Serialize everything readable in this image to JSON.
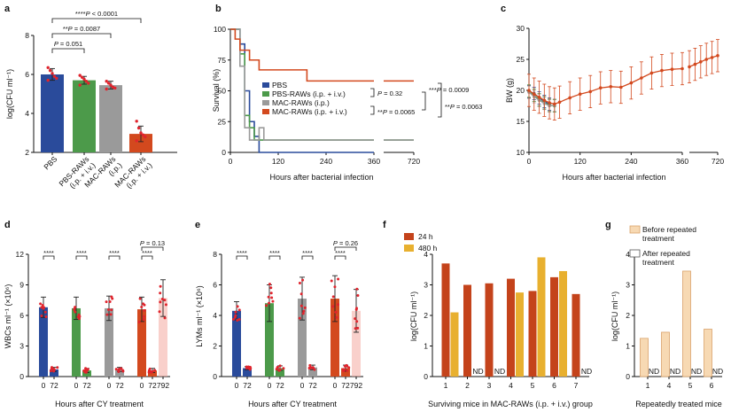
{
  "colors": {
    "pbs": "#2a4b9b",
    "pbs_raws": "#4c9a4a",
    "mac_ivp": "#9a9a9a",
    "mac_ivp_iv": "#d3491e",
    "mac_ivp_iv_light": "#f4a9a0",
    "bar_24h": "#c4431b",
    "bar_480h": "#e8b02f",
    "before_fill": "#f7d9b3",
    "before_edge": "#d9a26a",
    "dots": "#e0242d",
    "axis": "#111111"
  },
  "panel_labels": {
    "a": "a",
    "b": "b",
    "c": "c",
    "d": "d",
    "e": "e",
    "f": "f",
    "g": "g"
  },
  "chart_data": [
    {
      "panel": "a",
      "type": "bar",
      "ylabel": "log(CFU ml⁻¹)",
      "ylim": [
        2,
        8
      ],
      "yticks": [
        "2",
        "4",
        "6",
        "8"
      ],
      "categories": [
        "PBS",
        "PBS-RAWs (i.p. + i.v.)",
        "MAC-RAWs (i.p.)",
        "MAC-RAWs (i.p. + i.v.)"
      ],
      "category_lines": [
        [
          "PBS"
        ],
        [
          "PBS-RAWs",
          "(i.p. + i.v.)"
        ],
        [
          "MAC-RAWs",
          "(i.p.)"
        ],
        [
          "MAC-RAWs",
          "(i.p. + i.v.)"
        ]
      ],
      "values": [
        6.0,
        5.7,
        5.45,
        2.95
      ],
      "errors": [
        0.3,
        0.2,
        0.2,
        0.4
      ],
      "points": [
        [
          6.35,
          6.2,
          6.05,
          5.9,
          5.8,
          5.7
        ],
        [
          5.95,
          5.85,
          5.75,
          5.65,
          5.55,
          5.45
        ],
        [
          5.65,
          5.55,
          5.45,
          5.35,
          5.3,
          5.25
        ],
        [
          3.6,
          3.25,
          3.0,
          2.9,
          2.8,
          2.6
        ]
      ],
      "significance": [
        {
          "prefix": "",
          "stars": "",
          "p_label": "P",
          "p_value": " = 0.051",
          "from": 0,
          "to": 1
        },
        {
          "prefix": "",
          "stars": "**",
          "p_label": "P",
          "p_value": " = 0.0087",
          "from": 0,
          "to": 2
        },
        {
          "prefix": "",
          "stars": "****",
          "p_label": "P",
          "p_value": " < 0.0001",
          "from": 0,
          "to": 3
        }
      ]
    },
    {
      "panel": "b",
      "type": "line",
      "xlabel": "Hours after bacterial infection",
      "ylabel": "Survival (%)",
      "xticks": [
        "0",
        "120",
        "240",
        "360",
        "720"
      ],
      "xtick_values": [
        0,
        120,
        240,
        360,
        720
      ],
      "yticks": [
        "0",
        "25",
        "50",
        "75",
        "100"
      ],
      "ylim": [
        0,
        100
      ],
      "series": [
        {
          "name": "PBS",
          "color_key": "pbs",
          "steps": [
            [
              0,
              100
            ],
            [
              24,
              88
            ],
            [
              36,
              50
            ],
            [
              48,
              25
            ],
            [
              60,
              13
            ],
            [
              72,
              0
            ],
            [
              360,
              0
            ]
          ]
        },
        {
          "name": "PBS-RAWs (i.p. + i.v.)",
          "color_key": "pbs_raws",
          "steps": [
            [
              0,
              100
            ],
            [
              24,
              80
            ],
            [
              36,
              30
            ],
            [
              48,
              20
            ],
            [
              60,
              10
            ],
            [
              720,
              10
            ]
          ]
        },
        {
          "name": "MAC-RAWs (i.p.)",
          "color_key": "mac_ivp",
          "steps": [
            [
              0,
              100
            ],
            [
              24,
              70
            ],
            [
              36,
              20
            ],
            [
              48,
              10
            ],
            [
              60,
              10
            ],
            [
              72,
              20
            ],
            [
              84,
              10
            ],
            [
              720,
              10
            ]
          ]
        },
        {
          "name": "MAC-RAWs (i.p. + i.v.)",
          "color_key": "mac_ivp_iv",
          "steps": [
            [
              0,
              100
            ],
            [
              12,
              92
            ],
            [
              24,
              83
            ],
            [
              48,
              75
            ],
            [
              72,
              67
            ],
            [
              192,
              58
            ],
            [
              720,
              58
            ]
          ]
        }
      ],
      "stats": [
        {
          "stars": "",
          "p_label": "P",
          "p_value": " = 0.32"
        },
        {
          "stars": "**",
          "p_label": "P",
          "p_value": " = 0.0065"
        },
        {
          "stars": "***",
          "p_label": "P",
          "p_value": " = 0.0009"
        },
        {
          "stars": "**",
          "p_label": "P",
          "p_value": " = 0.0063"
        }
      ]
    },
    {
      "panel": "c",
      "type": "line",
      "xlabel": "Hours after bacterial infection",
      "ylabel": "BW (g)",
      "xticks": [
        "0",
        "120",
        "240",
        "360",
        "720"
      ],
      "yticks": [
        "10",
        "15",
        "20",
        "25",
        "30"
      ],
      "ylim": [
        10,
        30
      ],
      "series": [
        {
          "name": "PBS",
          "color_key": "pbs",
          "x": [
            0,
            12,
            24,
            36,
            48
          ],
          "y": [
            19.8,
            19.5,
            18.8,
            18.2,
            17.8
          ]
        },
        {
          "name": "PBS-RAWs (i.p. + i.v.)",
          "color_key": "pbs_raws",
          "x": [
            0,
            12,
            24,
            36,
            48,
            60
          ],
          "y": [
            19.9,
            19.2,
            18.5,
            18.0,
            17.6,
            17.5
          ]
        },
        {
          "name": "MAC-RAWs (i.p.)",
          "color_key": "mac_ivp",
          "x": [
            0,
            12,
            24,
            36,
            48,
            60
          ],
          "y": [
            19.7,
            19.0,
            18.4,
            17.9,
            17.5,
            17.6
          ]
        },
        {
          "name": "MAC-RAWs (i.p. + i.v.)",
          "color_key": "mac_ivp_iv",
          "x": [
            0,
            12,
            24,
            36,
            48,
            60,
            72,
            96,
            120,
            144,
            168,
            192,
            216,
            240,
            264,
            288,
            312,
            336,
            360
          ],
          "y": [
            20.0,
            19.4,
            18.9,
            18.4,
            18.0,
            17.8,
            18.1,
            18.8,
            19.4,
            19.8,
            20.4,
            20.6,
            20.5,
            21.2,
            22.0,
            22.8,
            23.2,
            23.4,
            23.5
          ]
        },
        {
          "name": "MAC-RAWs (i.p. + i.v.) late",
          "color_key": "mac_ivp_iv",
          "x": [
            600,
            624,
            648,
            672,
            696,
            720
          ],
          "y": [
            23.8,
            24.2,
            24.6,
            25.0,
            25.3,
            25.6
          ]
        }
      ]
    },
    {
      "panel": "d",
      "type": "bar",
      "xlabel": "Hours after CY treatment",
      "ylabel": "WBCs ml⁻¹ (×10⁶)",
      "ylim": [
        0,
        12
      ],
      "yticks": [
        "0",
        "3",
        "6",
        "9",
        "12"
      ],
      "tick_labels": [
        "0",
        "72",
        "0",
        "72",
        "0",
        "72",
        "0",
        "72",
        "792"
      ],
      "groups": [
        {
          "color_key": "pbs",
          "values": [
            6.8,
            0.7
          ],
          "errors": [
            1.0,
            0.2
          ]
        },
        {
          "color_key": "pbs_raws",
          "values": [
            6.7,
            0.6
          ],
          "errors": [
            1.1,
            0.2
          ]
        },
        {
          "color_key": "mac_ivp",
          "values": [
            6.7,
            0.7
          ],
          "errors": [
            1.2,
            0.2
          ]
        },
        {
          "color_key": "mac_ivp_iv",
          "values": [
            6.6,
            0.6,
            7.7
          ],
          "errors": [
            1.2,
            0.2,
            1.8
          ]
        }
      ],
      "significance": [
        "****",
        "****",
        "****",
        "****"
      ],
      "extra_p": {
        "p_label": "P",
        "p_value": " = 0.13"
      }
    },
    {
      "panel": "e",
      "type": "bar",
      "xlabel": "Hours after CY treatment",
      "ylabel": "LYMs ml⁻¹ (×10⁶)",
      "ylim": [
        0,
        8
      ],
      "yticks": [
        "0",
        "2",
        "4",
        "6",
        "8"
      ],
      "tick_labels": [
        "0",
        "72",
        "0",
        "72",
        "0",
        "72",
        "0",
        "72",
        "792"
      ],
      "groups": [
        {
          "color_key": "pbs",
          "values": [
            4.3,
            0.55
          ],
          "errors": [
            0.6,
            0.1
          ]
        },
        {
          "color_key": "pbs_raws",
          "values": [
            4.8,
            0.55
          ],
          "errors": [
            1.2,
            0.15
          ]
        },
        {
          "color_key": "mac_ivp",
          "values": [
            5.1,
            0.6
          ],
          "errors": [
            1.4,
            0.15
          ]
        },
        {
          "color_key": "mac_ivp_iv",
          "values": [
            5.1,
            0.55,
            4.3
          ],
          "errors": [
            1.5,
            0.2,
            1.4
          ]
        }
      ],
      "significance": [
        "****",
        "****",
        "****",
        "****"
      ],
      "extra_p": {
        "p_label": "P",
        "p_value": " = 0.26"
      }
    },
    {
      "panel": "f",
      "type": "bar",
      "xlabel": "Surviving mice in MAC-RAWs (i.p. + i.v.) group",
      "ylabel": "log(CFU ml⁻¹)",
      "ylim": [
        0,
        4
      ],
      "yticks": [
        "0",
        "1",
        "2",
        "3",
        "4"
      ],
      "categories": [
        "1",
        "2",
        "3",
        "4",
        "5",
        "6",
        "7"
      ],
      "series": [
        {
          "name": "24 h",
          "color_key": "bar_24h",
          "values": [
            3.7,
            3.0,
            3.05,
            3.2,
            2.8,
            3.25,
            2.7
          ]
        },
        {
          "name": "480 h",
          "color_key": "bar_480h",
          "values": [
            2.1,
            null,
            null,
            2.75,
            3.9,
            3.45,
            null
          ]
        }
      ],
      "nd_label": "ND"
    },
    {
      "panel": "g",
      "type": "bar",
      "xlabel": "Repeatedly treated mice",
      "ylabel": "log(CFU ml⁻¹)",
      "ylim": [
        0,
        4
      ],
      "yticks": [
        "0",
        "1",
        "2",
        "3",
        "4"
      ],
      "categories": [
        "1",
        "4",
        "5",
        "6"
      ],
      "series": [
        {
          "name": "Before repeated treatment",
          "lines": [
            "Before repeated",
            "treatment"
          ],
          "values": [
            1.25,
            1.45,
            3.45,
            1.55
          ]
        },
        {
          "name": "After repeated treatment",
          "lines": [
            "After repeated",
            "treatment"
          ],
          "values": [
            null,
            null,
            null,
            null
          ]
        }
      ],
      "nd_label": "ND"
    }
  ]
}
